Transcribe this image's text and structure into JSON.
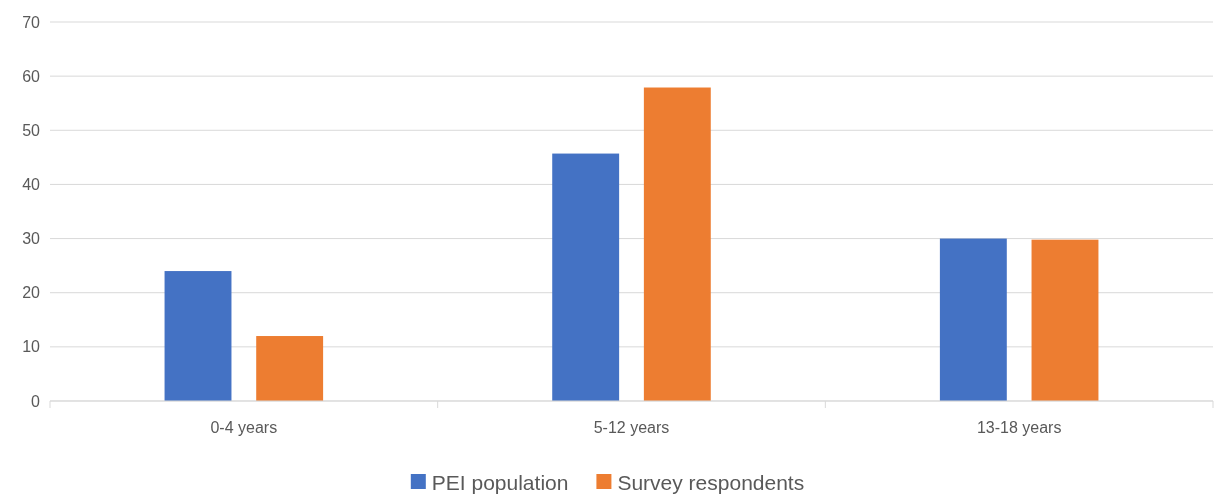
{
  "chart_data": {
    "type": "bar",
    "categories": [
      "0-4 years",
      "5-12 years",
      "13-18 years"
    ],
    "series": [
      {
        "name": "PEI population",
        "color": "#4472c4",
        "values": [
          24,
          45.7,
          30
        ]
      },
      {
        "name": "Survey respondents",
        "color": "#ed7d31",
        "values": [
          12,
          57.9,
          29.8
        ]
      }
    ],
    "ylim": [
      0,
      70
    ],
    "yticks": [
      0,
      10,
      20,
      30,
      40,
      50,
      60,
      70
    ],
    "grid": "y",
    "legend": "bottom"
  }
}
